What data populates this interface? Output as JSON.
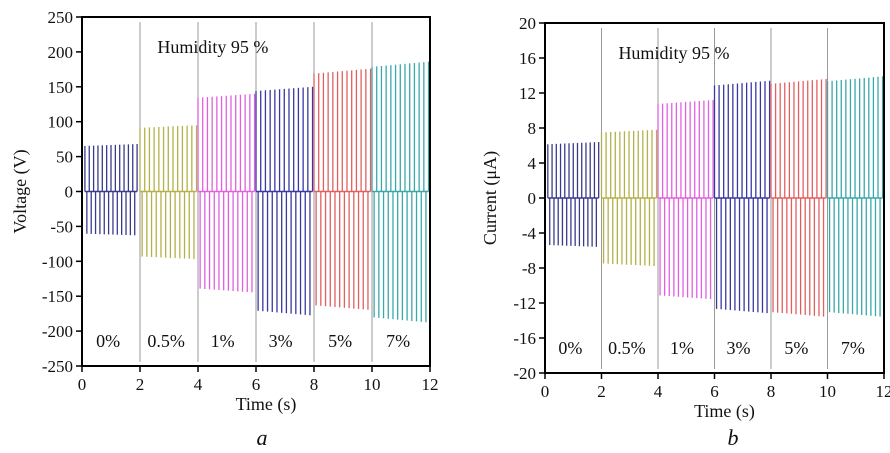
{
  "chart_data": [
    {
      "type": "line",
      "panel_label": "a",
      "annotation": "Humidity 95 %",
      "xlabel": "Time (s)",
      "ylabel": "Voltage (V)",
      "xlim": [
        0,
        12
      ],
      "ylim": [
        -250,
        250
      ],
      "x_ticks": [
        0,
        2,
        4,
        6,
        8,
        10,
        12
      ],
      "y_ticks": [
        250,
        200,
        150,
        100,
        50,
        0,
        -50,
        -100,
        -150,
        -200,
        -250
      ],
      "x_tick_labels": [
        "0",
        "2",
        "4",
        "6",
        "8",
        "10",
        "12"
      ],
      "y_tick_labels": [
        "250",
        "200",
        "150",
        "100",
        "50",
        "0",
        "-50",
        "-100",
        "-150",
        "-200",
        "-250"
      ],
      "segment_labels": [
        "0%",
        "0.5%",
        "1%",
        "3%",
        "5%",
        "7%"
      ],
      "segment_boundaries": [
        2,
        4,
        6,
        8,
        10
      ],
      "series": [
        {
          "color": "#3a3a8c",
          "x_start": 0.1,
          "x_end": 1.9,
          "pos_peak": 68,
          "neg_peak": -63
        },
        {
          "color": "#b5b04a",
          "x_start": 2.0,
          "x_end": 3.95,
          "pos_peak": 95,
          "neg_peak": -97
        },
        {
          "color": "#e060e0",
          "x_start": 4.0,
          "x_end": 5.95,
          "pos_peak": 140,
          "neg_peak": -145
        },
        {
          "color": "#3838a0",
          "x_start": 6.0,
          "x_end": 7.95,
          "pos_peak": 150,
          "neg_peak": -178
        },
        {
          "color": "#e06060",
          "x_start": 8.0,
          "x_end": 9.95,
          "pos_peak": 176,
          "neg_peak": -170
        },
        {
          "color": "#3aa8a8",
          "x_start": 10.0,
          "x_end": 11.95,
          "pos_peak": 186,
          "neg_peak": -188
        }
      ]
    },
    {
      "type": "line",
      "panel_label": "b",
      "annotation": "Humidity 95 %",
      "xlabel": "Time (s)",
      "ylabel": "Current (μA)",
      "xlim": [
        0,
        12
      ],
      "ylim": [
        -20,
        20
      ],
      "x_ticks": [
        0,
        2,
        4,
        6,
        8,
        10,
        12
      ],
      "y_ticks": [
        20,
        16,
        12,
        8,
        4,
        0,
        -4,
        -8,
        -12,
        -16,
        -20
      ],
      "x_tick_labels": [
        "0",
        "2",
        "4",
        "6",
        "8",
        "10",
        "12"
      ],
      "y_tick_labels": [
        "20",
        "16",
        "12",
        "8",
        "4",
        "0",
        "-4",
        "-8",
        "-12",
        "-16",
        "-20"
      ],
      "segment_labels": [
        "0%",
        "0.5%",
        "1%",
        "3%",
        "5%",
        "7%"
      ],
      "segment_boundaries": [
        2,
        4,
        6,
        8,
        10
      ],
      "series": [
        {
          "color": "#3a3a8c",
          "x_start": 0.1,
          "x_end": 1.9,
          "pos_peak": 6.4,
          "neg_peak": -5.6
        },
        {
          "color": "#b5b04a",
          "x_start": 2.0,
          "x_end": 3.95,
          "pos_peak": 7.8,
          "neg_peak": -7.8
        },
        {
          "color": "#e060e0",
          "x_start": 4.0,
          "x_end": 5.95,
          "pos_peak": 11.2,
          "neg_peak": -11.6
        },
        {
          "color": "#3838a0",
          "x_start": 6.0,
          "x_end": 7.95,
          "pos_peak": 13.4,
          "neg_peak": -13.2
        },
        {
          "color": "#e06060",
          "x_start": 8.0,
          "x_end": 9.95,
          "pos_peak": 13.6,
          "neg_peak": -13.6
        },
        {
          "color": "#3aa8a8",
          "x_start": 10.0,
          "x_end": 11.95,
          "pos_peak": 13.9,
          "neg_peak": -13.6
        }
      ]
    }
  ]
}
